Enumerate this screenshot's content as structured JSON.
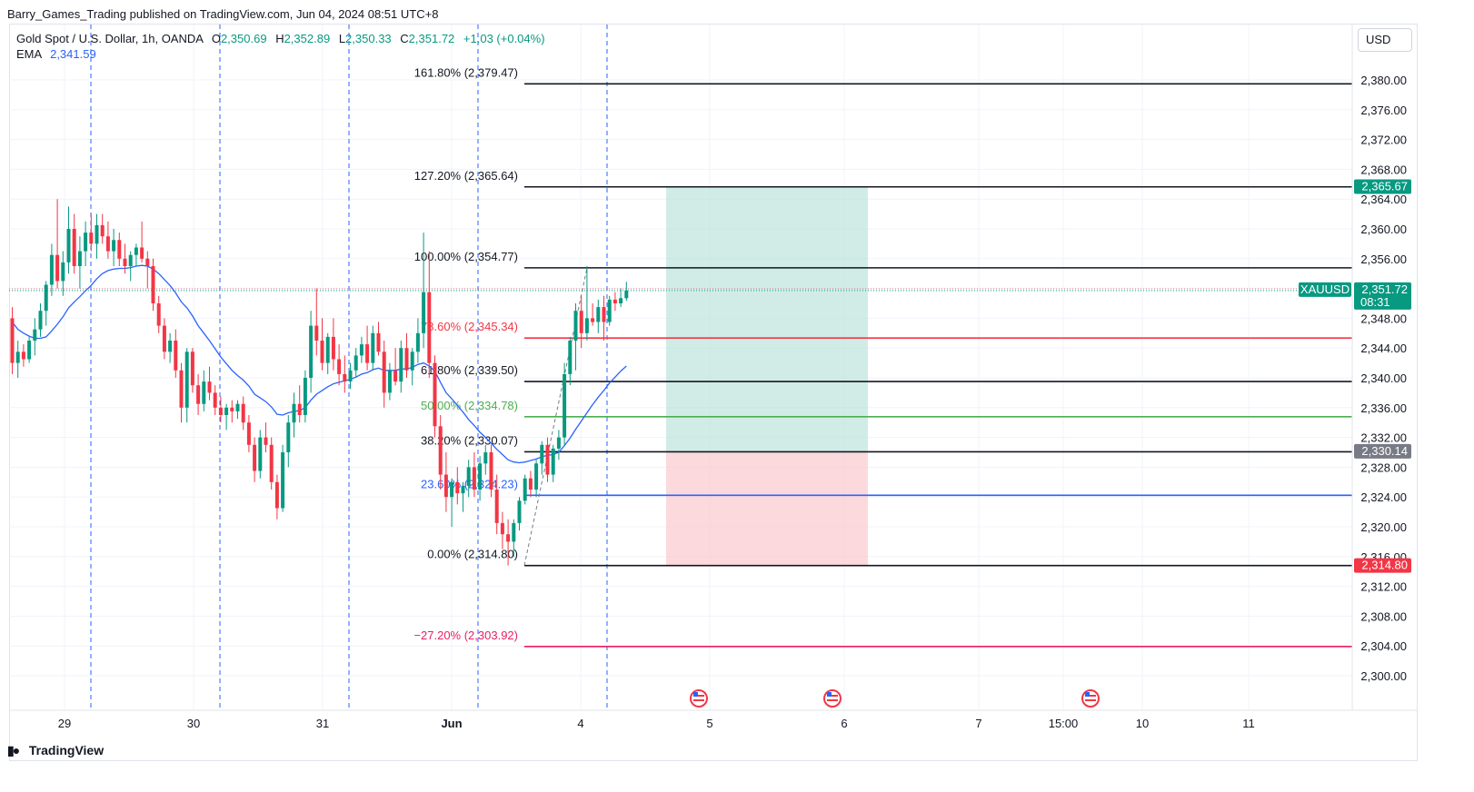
{
  "header": {
    "published_line": "Barry_Games_Trading published on TradingView.com, Jun 04, 2024 08:51 UTC+8"
  },
  "legend": {
    "symbol": "Gold Spot / U.S. Dollar, 1h, OANDA",
    "open_label": "O",
    "open": "2,350.69",
    "high_label": "H",
    "high": "2,352.89",
    "low_label": "L",
    "low": "2,350.33",
    "close_label": "C",
    "close": "2,351.72",
    "change": "+1.03 (+0.04%)",
    "ema_label": "EMA",
    "ema_value": "2,341.59"
  },
  "currency_button": "USD",
  "brand": "TradingView",
  "colors": {
    "up": "#089981",
    "down": "#f23645",
    "ema": "#2962ff",
    "profit_zone": "#b2dfd6",
    "loss_zone": "#f9c9cd",
    "fib_786": "#f23645",
    "fib_50": "#4caf50",
    "fib_236": "#2962ff",
    "fib_ext_neg": "#e91e63"
  },
  "chart_data": {
    "type": "candlestick",
    "symbol": "XAUUSD",
    "timeframe": "1h",
    "ylim": [
      2297.2,
      2386.0
    ],
    "price_ticks": [
      "2,380.00",
      "2,376.00",
      "2,372.00",
      "2,368.00",
      "2,364.00",
      "2,360.00",
      "2,356.00",
      "2,352.00",
      "2,348.00",
      "2,344.00",
      "2,340.00",
      "2,336.00",
      "2,332.00",
      "2,328.00",
      "2,324.00",
      "2,320.00",
      "2,316.00",
      "2,312.00",
      "2,308.00",
      "2,304.00",
      "2,300.00"
    ],
    "time_ticks": [
      "29",
      "30",
      "31",
      "Jun",
      "4",
      "5",
      "6",
      "7",
      "15:00",
      "10",
      "11"
    ],
    "fib_levels": [
      {
        "label": "161.80% (2,379.47)",
        "price": 2379.47,
        "color": "#131722"
      },
      {
        "label": "127.20% (2,365.64)",
        "price": 2365.64,
        "color": "#131722"
      },
      {
        "label": "100.00% (2,354.77)",
        "price": 2354.77,
        "color": "#131722"
      },
      {
        "label": "78.60% (2,345.34)",
        "price": 2345.34,
        "color": "#f23645"
      },
      {
        "label": "61.80% (2,339.50)",
        "price": 2339.5,
        "color": "#131722"
      },
      {
        "label": "50.00% (2,334.78)",
        "price": 2334.78,
        "color": "#4caf50"
      },
      {
        "label": "38.20% (2,330.07)",
        "price": 2330.07,
        "color": "#131722"
      },
      {
        "label": "23.60% (2,324.23)",
        "price": 2324.23,
        "color": "#2962ff"
      },
      {
        "label": "0.00% (2,314.80)",
        "price": 2314.8,
        "color": "#131722"
      },
      {
        "label": "−27.20% (2,303.92)",
        "price": 2303.92,
        "color": "#e91e63"
      }
    ],
    "price_tags": [
      {
        "symbol": "",
        "value": "2,365.67",
        "price": 2365.67,
        "color": "#089981"
      },
      {
        "symbol": "XAUUSD",
        "value": "2,351.72",
        "sub": "08:31",
        "price": 2351.72,
        "color": "#089981"
      },
      {
        "symbol": "",
        "value": "2,330.14",
        "price": 2330.14,
        "color": "#787b86"
      },
      {
        "symbol": "",
        "value": "2,314.80",
        "price": 2314.8,
        "color": "#f23645"
      }
    ],
    "position": {
      "entry": 2330.14,
      "target": 2365.67,
      "stop": 2314.8
    },
    "candles": [
      [
        2348.0,
        2349.5,
        2340.5,
        2342.0
      ],
      [
        2342.0,
        2345.0,
        2340.0,
        2343.5
      ],
      [
        2343.5,
        2344.5,
        2341.5,
        2342.5
      ],
      [
        2342.5,
        2345.5,
        2342.0,
        2345.0
      ],
      [
        2345.0,
        2348.0,
        2343.0,
        2346.5
      ],
      [
        2346.5,
        2350.0,
        2345.5,
        2349.0
      ],
      [
        2349.0,
        2353.0,
        2347.0,
        2352.5
      ],
      [
        2352.5,
        2358.0,
        2351.0,
        2356.5
      ],
      [
        2356.5,
        2364.0,
        2352.0,
        2353.0
      ],
      [
        2353.0,
        2357.0,
        2351.0,
        2355.5
      ],
      [
        2355.5,
        2363.0,
        2354.0,
        2360.0
      ],
      [
        2360.0,
        2362.0,
        2354.0,
        2355.0
      ],
      [
        2355.0,
        2359.0,
        2352.0,
        2357.0
      ],
      [
        2357.0,
        2361.0,
        2355.0,
        2359.5
      ],
      [
        2359.5,
        2362.0,
        2357.0,
        2358.0
      ],
      [
        2358.0,
        2362.0,
        2356.0,
        2360.5
      ],
      [
        2360.5,
        2362.0,
        2358.0,
        2359.0
      ],
      [
        2359.0,
        2361.0,
        2356.0,
        2357.0
      ],
      [
        2357.0,
        2360.0,
        2355.0,
        2358.5
      ],
      [
        2358.5,
        2359.5,
        2355.0,
        2356.0
      ],
      [
        2356.0,
        2358.0,
        2354.0,
        2355.0
      ],
      [
        2355.0,
        2357.0,
        2353.0,
        2356.5
      ],
      [
        2356.5,
        2358.0,
        2355.0,
        2357.5
      ],
      [
        2357.5,
        2361.0,
        2355.5,
        2356.0
      ],
      [
        2356.0,
        2357.0,
        2352.0,
        2355.0
      ],
      [
        2355.0,
        2356.0,
        2349.0,
        2350.0
      ],
      [
        2350.0,
        2351.0,
        2346.0,
        2347.0
      ],
      [
        2347.0,
        2348.0,
        2342.5,
        2343.5
      ],
      [
        2343.5,
        2346.0,
        2342.0,
        2345.0
      ],
      [
        2345.0,
        2346.5,
        2340.0,
        2341.0
      ],
      [
        2341.0,
        2342.0,
        2334.0,
        2336.0
      ],
      [
        2336.0,
        2344.0,
        2334.0,
        2343.5
      ],
      [
        2343.5,
        2344.0,
        2338.0,
        2339.0
      ],
      [
        2339.0,
        2340.5,
        2335.0,
        2336.5
      ],
      [
        2336.5,
        2341.0,
        2335.5,
        2339.5
      ],
      [
        2339.5,
        2341.5,
        2337.0,
        2338.0
      ],
      [
        2338.0,
        2339.0,
        2335.0,
        2336.0
      ],
      [
        2336.0,
        2337.5,
        2334.0,
        2335.0
      ],
      [
        2335.0,
        2336.5,
        2333.0,
        2336.0
      ],
      [
        2336.0,
        2337.0,
        2334.0,
        2335.5
      ],
      [
        2335.5,
        2337.0,
        2334.5,
        2336.5
      ],
      [
        2336.5,
        2337.5,
        2333.0,
        2334.0
      ],
      [
        2334.0,
        2335.0,
        2330.0,
        2331.0
      ],
      [
        2331.0,
        2332.0,
        2326.0,
        2327.5
      ],
      [
        2327.5,
        2333.0,
        2326.5,
        2332.0
      ],
      [
        2332.0,
        2334.0,
        2330.0,
        2331.0
      ],
      [
        2331.0,
        2332.0,
        2325.0,
        2326.0
      ],
      [
        2326.0,
        2327.0,
        2321.0,
        2322.5
      ],
      [
        2322.5,
        2331.0,
        2322.0,
        2330.0
      ],
      [
        2330.0,
        2335.0,
        2328.0,
        2334.0
      ],
      [
        2334.0,
        2338.0,
        2332.0,
        2336.5
      ],
      [
        2336.5,
        2339.0,
        2334.0,
        2335.0
      ],
      [
        2335.0,
        2341.0,
        2334.0,
        2340.0
      ],
      [
        2340.0,
        2349.0,
        2338.0,
        2347.0
      ],
      [
        2347.0,
        2352.0,
        2343.0,
        2345.0
      ],
      [
        2345.0,
        2348.0,
        2341.0,
        2342.0
      ],
      [
        2342.0,
        2346.0,
        2340.5,
        2345.5
      ],
      [
        2345.5,
        2348.0,
        2341.0,
        2342.5
      ],
      [
        2342.5,
        2344.5,
        2339.0,
        2340.5
      ],
      [
        2340.5,
        2343.0,
        2338.0,
        2339.5
      ],
      [
        2339.5,
        2342.0,
        2338.5,
        2341.0
      ],
      [
        2341.0,
        2344.0,
        2340.0,
        2343.0
      ],
      [
        2343.0,
        2345.5,
        2342.0,
        2344.5
      ],
      [
        2344.5,
        2347.0,
        2341.0,
        2342.0
      ],
      [
        2342.0,
        2347.0,
        2341.0,
        2346.0
      ],
      [
        2346.0,
        2347.5,
        2343.0,
        2343.5
      ],
      [
        2343.5,
        2345.0,
        2336.0,
        2338.0
      ],
      [
        2338.0,
        2342.0,
        2337.0,
        2341.0
      ],
      [
        2341.0,
        2344.0,
        2339.0,
        2339.5
      ],
      [
        2339.5,
        2345.0,
        2338.0,
        2344.0
      ],
      [
        2344.0,
        2346.0,
        2340.0,
        2341.0
      ],
      [
        2341.0,
        2344.0,
        2339.0,
        2343.5
      ],
      [
        2343.5,
        2348.0,
        2342.0,
        2346.0
      ],
      [
        2346.0,
        2359.5,
        2344.0,
        2351.5
      ],
      [
        2351.5,
        2357.0,
        2340.0,
        2342.0
      ],
      [
        2342.0,
        2343.0,
        2332.0,
        2333.5
      ],
      [
        2333.5,
        2335.0,
        2325.0,
        2327.0
      ],
      [
        2327.0,
        2330.0,
        2322.0,
        2324.0
      ],
      [
        2324.0,
        2326.5,
        2320.0,
        2326.0
      ],
      [
        2326.0,
        2328.0,
        2323.0,
        2324.5
      ],
      [
        2324.5,
        2326.0,
        2322.0,
        2325.5
      ],
      [
        2325.5,
        2329.0,
        2324.0,
        2328.0
      ],
      [
        2328.0,
        2330.0,
        2324.0,
        2325.0
      ],
      [
        2325.0,
        2329.5,
        2323.5,
        2328.5
      ],
      [
        2328.5,
        2331.0,
        2327.0,
        2330.0
      ],
      [
        2330.0,
        2331.0,
        2324.0,
        2325.0
      ],
      [
        2325.0,
        2327.0,
        2319.0,
        2320.5
      ],
      [
        2320.5,
        2322.0,
        2317.0,
        2319.0
      ],
      [
        2319.0,
        2321.0,
        2314.8,
        2318.0
      ],
      [
        2318.0,
        2321.0,
        2316.0,
        2320.5
      ],
      [
        2320.5,
        2324.0,
        2319.5,
        2323.5
      ],
      [
        2323.5,
        2327.0,
        2323.0,
        2326.5
      ],
      [
        2326.5,
        2327.5,
        2324.0,
        2325.0
      ],
      [
        2325.0,
        2329.0,
        2324.0,
        2328.5
      ],
      [
        2328.5,
        2331.5,
        2327.0,
        2331.0
      ],
      [
        2331.0,
        2332.0,
        2326.0,
        2327.0
      ],
      [
        2327.0,
        2331.0,
        2326.0,
        2330.5
      ],
      [
        2330.5,
        2333.0,
        2329.0,
        2332.0
      ],
      [
        2332.0,
        2342.0,
        2331.0,
        2340.5
      ],
      [
        2340.5,
        2345.5,
        2339.0,
        2345.0
      ],
      [
        2345.0,
        2350.0,
        2341.0,
        2349.0
      ],
      [
        2349.0,
        2351.0,
        2344.0,
        2346.0
      ],
      [
        2346.0,
        2355.0,
        2345.0,
        2348.0
      ],
      [
        2348.0,
        2350.0,
        2347.0,
        2347.5
      ],
      [
        2347.5,
        2350.5,
        2346.0,
        2349.5
      ],
      [
        2349.5,
        2351.0,
        2345.0,
        2347.5
      ],
      [
        2347.5,
        2351.0,
        2347.0,
        2350.5
      ],
      [
        2350.5,
        2351.5,
        2349.0,
        2350.0
      ],
      [
        2350.0,
        2352.0,
        2349.5,
        2350.7
      ],
      [
        2350.69,
        2352.89,
        2350.33,
        2351.72
      ]
    ],
    "ema": [
      2347.5,
      2346.5,
      2346.0,
      2345.6,
      2345.3,
      2345.3,
      2345.5,
      2346.3,
      2347.2,
      2348.2,
      2349.4,
      2350.2,
      2350.9,
      2351.7,
      2352.4,
      2353.3,
      2354.0,
      2354.4,
      2354.6,
      2354.7,
      2354.7,
      2354.8,
      2355.0,
      2355.1,
      2355.0,
      2354.6,
      2354.0,
      2353.2,
      2352.4,
      2351.4,
      2350.2,
      2349.4,
      2348.3,
      2347.0,
      2346.0,
      2345.0,
      2343.9,
      2342.8,
      2341.9,
      2341.0,
      2340.3,
      2339.7,
      2338.9,
      2337.8,
      2337.3,
      2336.8,
      2336.1,
      2335.1,
      2335.0,
      2335.3,
      2335.5,
      2335.6,
      2336.0,
      2337.0,
      2337.8,
      2338.3,
      2338.8,
      2339.2,
      2339.4,
      2339.6,
      2339.8,
      2340.1,
      2340.5,
      2340.7,
      2341.1,
      2341.3,
      2341.0,
      2341.0,
      2341.0,
      2341.2,
      2341.2,
      2341.4,
      2341.8,
      2342.0,
      2341.6,
      2340.9,
      2339.4,
      2338.0,
      2337.2,
      2336.3,
      2335.4,
      2334.4,
      2333.6,
      2332.7,
      2332.0,
      2331.2,
      2330.4,
      2329.7,
      2329.0,
      2328.7,
      2328.6,
      2328.7,
      2328.9,
      2329.1,
      2329.4,
      2329.6,
      2329.7,
      2330.0,
      2330.9,
      2331.9,
      2333.1,
      2334.2,
      2335.3,
      2336.4,
      2337.4,
      2338.3,
      2339.3,
      2340.1,
      2340.9,
      2341.59
    ],
    "vertical_markers": [
      "29",
      "30",
      "31",
      "Jun",
      "4 08:00"
    ]
  }
}
